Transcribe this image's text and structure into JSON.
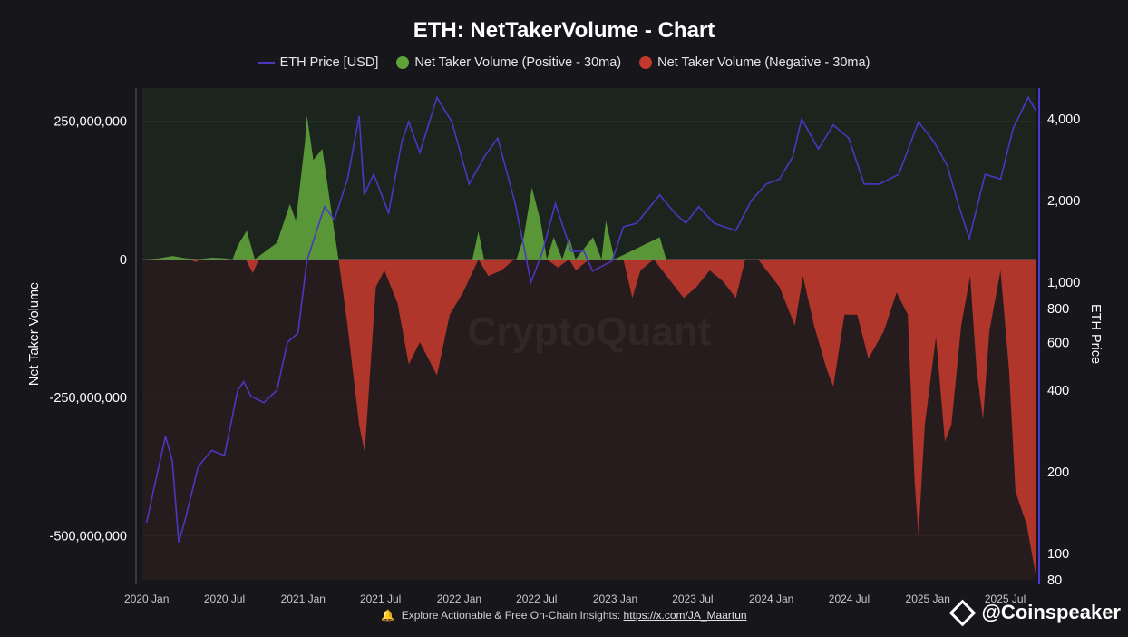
{
  "title": "ETH: NetTakerVolume - Chart",
  "legend": {
    "price": "ETH Price [USD]",
    "positive": "Net Taker Volume (Positive - 30ma)",
    "negative": "Net Taker Volume (Negative - 30ma)"
  },
  "colors": {
    "price": "#4a37c2",
    "positive": "#5fa33a",
    "negative": "#c0392b",
    "bg_top": "#1b251e",
    "bg_bottom": "#261c1e",
    "axis_right": "#4a3ad0"
  },
  "watermark": "CryptoQuant",
  "footer": {
    "text": "Explore Actionable & Free On-Chain Insights:",
    "link": "https://x.com/JA_Maartun"
  },
  "brand": "@Coinspeaker",
  "chart_data": {
    "type": "area",
    "xlabel": "",
    "ylabel": "Net Taker Volume",
    "y2label": "ETH Price",
    "ylim": [
      -580000000,
      310000000
    ],
    "y2lim": [
      80,
      5200
    ],
    "y2scale": "log",
    "xlim": [
      "2019-12-22",
      "2025-09-12"
    ],
    "yticks": [
      {
        "value": 250000000,
        "label": "250,000,000"
      },
      {
        "value": 0,
        "label": "0"
      },
      {
        "value": -250000000,
        "label": "-250,000,000"
      },
      {
        "value": -500000000,
        "label": "-500,000,000"
      }
    ],
    "y2ticks": [
      {
        "value": 4000,
        "label": "4,000"
      },
      {
        "value": 2000,
        "label": "2,000"
      },
      {
        "value": 1000,
        "label": "1,000"
      },
      {
        "value": 800,
        "label": "800"
      },
      {
        "value": 600,
        "label": "600"
      },
      {
        "value": 400,
        "label": "400"
      },
      {
        "value": 200,
        "label": "200"
      },
      {
        "value": 100,
        "label": "100"
      },
      {
        "value": 80,
        "label": "80"
      }
    ],
    "xticks": [
      {
        "date": "2020-01-01",
        "label": "2020 Jan"
      },
      {
        "date": "2020-07-01",
        "label": "2020 Jul"
      },
      {
        "date": "2021-01-01",
        "label": "2021 Jan"
      },
      {
        "date": "2021-07-01",
        "label": "2021 Jul"
      },
      {
        "date": "2022-01-01",
        "label": "2022 Jan"
      },
      {
        "date": "2022-07-01",
        "label": "2022 Jul"
      },
      {
        "date": "2023-01-01",
        "label": "2023 Jan"
      },
      {
        "date": "2023-07-01",
        "label": "2023 Jul"
      },
      {
        "date": "2024-01-01",
        "label": "2024 Jan"
      },
      {
        "date": "2024-07-01",
        "label": "2024 Jul"
      },
      {
        "date": "2025-01-01",
        "label": "2025 Jan"
      },
      {
        "date": "2025-07-01",
        "label": "2025 Jul"
      }
    ],
    "series": [
      {
        "name": "ETH Price [USD]",
        "axis": "right",
        "points": [
          [
            "2020-01-01",
            130
          ],
          [
            "2020-01-15",
            165
          ],
          [
            "2020-02-14",
            270
          ],
          [
            "2020-03-01",
            220
          ],
          [
            "2020-03-16",
            110
          ],
          [
            "2020-04-01",
            135
          ],
          [
            "2020-05-01",
            210
          ],
          [
            "2020-06-01",
            240
          ],
          [
            "2020-07-01",
            230
          ],
          [
            "2020-08-01",
            400
          ],
          [
            "2020-08-15",
            430
          ],
          [
            "2020-09-01",
            380
          ],
          [
            "2020-10-01",
            360
          ],
          [
            "2020-11-01",
            400
          ],
          [
            "2020-11-25",
            600
          ],
          [
            "2020-12-20",
            650
          ],
          [
            "2021-01-10",
            1200
          ],
          [
            "2021-02-20",
            1900
          ],
          [
            "2021-03-15",
            1700
          ],
          [
            "2021-04-15",
            2400
          ],
          [
            "2021-05-12",
            4100
          ],
          [
            "2021-05-24",
            2100
          ],
          [
            "2021-06-15",
            2500
          ],
          [
            "2021-07-20",
            1800
          ],
          [
            "2021-08-20",
            3300
          ],
          [
            "2021-09-05",
            3900
          ],
          [
            "2021-10-01",
            3000
          ],
          [
            "2021-11-10",
            4800
          ],
          [
            "2021-12-15",
            3900
          ],
          [
            "2022-01-24",
            2300
          ],
          [
            "2022-03-01",
            2900
          ],
          [
            "2022-04-01",
            3400
          ],
          [
            "2022-05-12",
            1950
          ],
          [
            "2022-06-18",
            1000
          ],
          [
            "2022-07-15",
            1300
          ],
          [
            "2022-08-14",
            1950
          ],
          [
            "2022-09-20",
            1300
          ],
          [
            "2022-10-20",
            1300
          ],
          [
            "2022-11-09",
            1100
          ],
          [
            "2022-12-25",
            1200
          ],
          [
            "2023-01-20",
            1600
          ],
          [
            "2023-02-20",
            1650
          ],
          [
            "2023-04-15",
            2100
          ],
          [
            "2023-05-20",
            1800
          ],
          [
            "2023-06-15",
            1650
          ],
          [
            "2023-07-15",
            1900
          ],
          [
            "2023-08-20",
            1650
          ],
          [
            "2023-10-10",
            1550
          ],
          [
            "2023-11-15",
            2000
          ],
          [
            "2023-12-20",
            2300
          ],
          [
            "2024-01-20",
            2400
          ],
          [
            "2024-02-20",
            2900
          ],
          [
            "2024-03-12",
            4000
          ],
          [
            "2024-04-20",
            3100
          ],
          [
            "2024-05-25",
            3800
          ],
          [
            "2024-06-30",
            3400
          ],
          [
            "2024-08-05",
            2300
          ],
          [
            "2024-09-10",
            2300
          ],
          [
            "2024-10-25",
            2500
          ],
          [
            "2024-12-10",
            3900
          ],
          [
            "2025-01-15",
            3300
          ],
          [
            "2025-02-15",
            2700
          ],
          [
            "2025-03-15",
            1900
          ],
          [
            "2025-04-08",
            1450
          ],
          [
            "2025-05-15",
            2500
          ],
          [
            "2025-06-20",
            2400
          ],
          [
            "2025-07-20",
            3700
          ],
          [
            "2025-08-24",
            4800
          ],
          [
            "2025-09-10",
            4300
          ]
        ]
      },
      {
        "name": "Net Taker Volume (Positive - 30ma)",
        "axis": "left",
        "points": [
          [
            "2020-01-01",
            0
          ],
          [
            "2020-02-01",
            2000000
          ],
          [
            "2020-03-01",
            6000000
          ],
          [
            "2020-04-01",
            2000000
          ],
          [
            "2020-05-01",
            0
          ],
          [
            "2020-06-01",
            3000000
          ],
          [
            "2020-07-01",
            2000000
          ],
          [
            "2020-07-20",
            0
          ],
          [
            "2020-08-01",
            25000000
          ],
          [
            "2020-08-22",
            52000000
          ],
          [
            "2020-09-10",
            0
          ],
          [
            "2020-11-01",
            30000000
          ],
          [
            "2020-12-01",
            100000000
          ],
          [
            "2020-12-15",
            70000000
          ],
          [
            "2021-01-05",
            210000000
          ],
          [
            "2021-01-10",
            260000000
          ],
          [
            "2021-01-25",
            180000000
          ],
          [
            "2021-02-15",
            200000000
          ],
          [
            "2021-03-15",
            50000000
          ],
          [
            "2021-03-25",
            0
          ],
          [
            "2022-02-01",
            0
          ],
          [
            "2022-02-15",
            50000000
          ],
          [
            "2022-02-28",
            0
          ],
          [
            "2022-05-15",
            0
          ],
          [
            "2022-06-01",
            40000000
          ],
          [
            "2022-06-20",
            130000000
          ],
          [
            "2022-07-10",
            70000000
          ],
          [
            "2022-07-25",
            0
          ],
          [
            "2022-08-10",
            40000000
          ],
          [
            "2022-08-30",
            0
          ],
          [
            "2022-09-15",
            40000000
          ],
          [
            "2022-09-30",
            0
          ],
          [
            "2022-11-10",
            40000000
          ],
          [
            "2022-11-30",
            0
          ],
          [
            "2022-12-10",
            70000000
          ],
          [
            "2022-12-30",
            0
          ],
          [
            "2023-04-15",
            40000000
          ],
          [
            "2023-04-30",
            0
          ],
          [
            "2023-12-01",
            0
          ]
        ]
      },
      {
        "name": "Net Taker Volume (Negative - 30ma)",
        "axis": "left",
        "points": [
          [
            "2020-01-01",
            0
          ],
          [
            "2020-04-10",
            0
          ],
          [
            "2020-04-25",
            -5000000
          ],
          [
            "2020-05-10",
            0
          ],
          [
            "2020-08-20",
            0
          ],
          [
            "2020-09-05",
            -25000000
          ],
          [
            "2020-09-20",
            0
          ],
          [
            "2021-03-25",
            0
          ],
          [
            "2021-04-15",
            -120000000
          ],
          [
            "2021-05-12",
            -300000000
          ],
          [
            "2021-05-25",
            -350000000
          ],
          [
            "2021-06-20",
            -50000000
          ],
          [
            "2021-07-10",
            -20000000
          ],
          [
            "2021-08-10",
            -80000000
          ],
          [
            "2021-09-05",
            -190000000
          ],
          [
            "2021-10-01",
            -150000000
          ],
          [
            "2021-11-10",
            -210000000
          ],
          [
            "2021-12-10",
            -100000000
          ],
          [
            "2022-01-10",
            -60000000
          ],
          [
            "2022-02-15",
            0
          ],
          [
            "2022-03-10",
            -30000000
          ],
          [
            "2022-04-10",
            -20000000
          ],
          [
            "2022-05-10",
            0
          ],
          [
            "2022-07-25",
            0
          ],
          [
            "2022-08-20",
            -15000000
          ],
          [
            "2022-09-15",
            0
          ],
          [
            "2022-10-01",
            -20000000
          ],
          [
            "2022-11-01",
            0
          ],
          [
            "2023-01-20",
            0
          ],
          [
            "2023-02-10",
            -70000000
          ],
          [
            "2023-03-01",
            -20000000
          ],
          [
            "2023-04-01",
            0
          ],
          [
            "2023-05-01",
            -30000000
          ],
          [
            "2023-06-10",
            -70000000
          ],
          [
            "2023-07-10",
            -50000000
          ],
          [
            "2023-08-10",
            -20000000
          ],
          [
            "2023-09-10",
            -40000000
          ],
          [
            "2023-10-10",
            -70000000
          ],
          [
            "2023-11-01",
            0
          ],
          [
            "2023-12-01",
            0
          ],
          [
            "2024-01-20",
            -50000000
          ],
          [
            "2024-02-25",
            -120000000
          ],
          [
            "2024-03-15",
            -30000000
          ],
          [
            "2024-04-10",
            -120000000
          ],
          [
            "2024-05-10",
            -200000000
          ],
          [
            "2024-05-25",
            -230000000
          ],
          [
            "2024-06-20",
            -100000000
          ],
          [
            "2024-07-20",
            -100000000
          ],
          [
            "2024-08-15",
            -180000000
          ],
          [
            "2024-09-20",
            -130000000
          ],
          [
            "2024-10-20",
            -60000000
          ],
          [
            "2024-11-15",
            -100000000
          ],
          [
            "2024-12-01",
            -400000000
          ],
          [
            "2024-12-10",
            -500000000
          ],
          [
            "2024-12-25",
            -300000000
          ],
          [
            "2025-01-20",
            -140000000
          ],
          [
            "2025-02-10",
            -330000000
          ],
          [
            "2025-02-25",
            -300000000
          ],
          [
            "2025-03-20",
            -120000000
          ],
          [
            "2025-04-10",
            -30000000
          ],
          [
            "2025-04-25",
            -200000000
          ],
          [
            "2025-05-10",
            -290000000
          ],
          [
            "2025-05-25",
            -130000000
          ],
          [
            "2025-06-20",
            -20000000
          ],
          [
            "2025-07-10",
            -200000000
          ],
          [
            "2025-07-25",
            -420000000
          ],
          [
            "2025-08-20",
            -480000000
          ],
          [
            "2025-09-10",
            -570000000
          ]
        ]
      }
    ]
  }
}
